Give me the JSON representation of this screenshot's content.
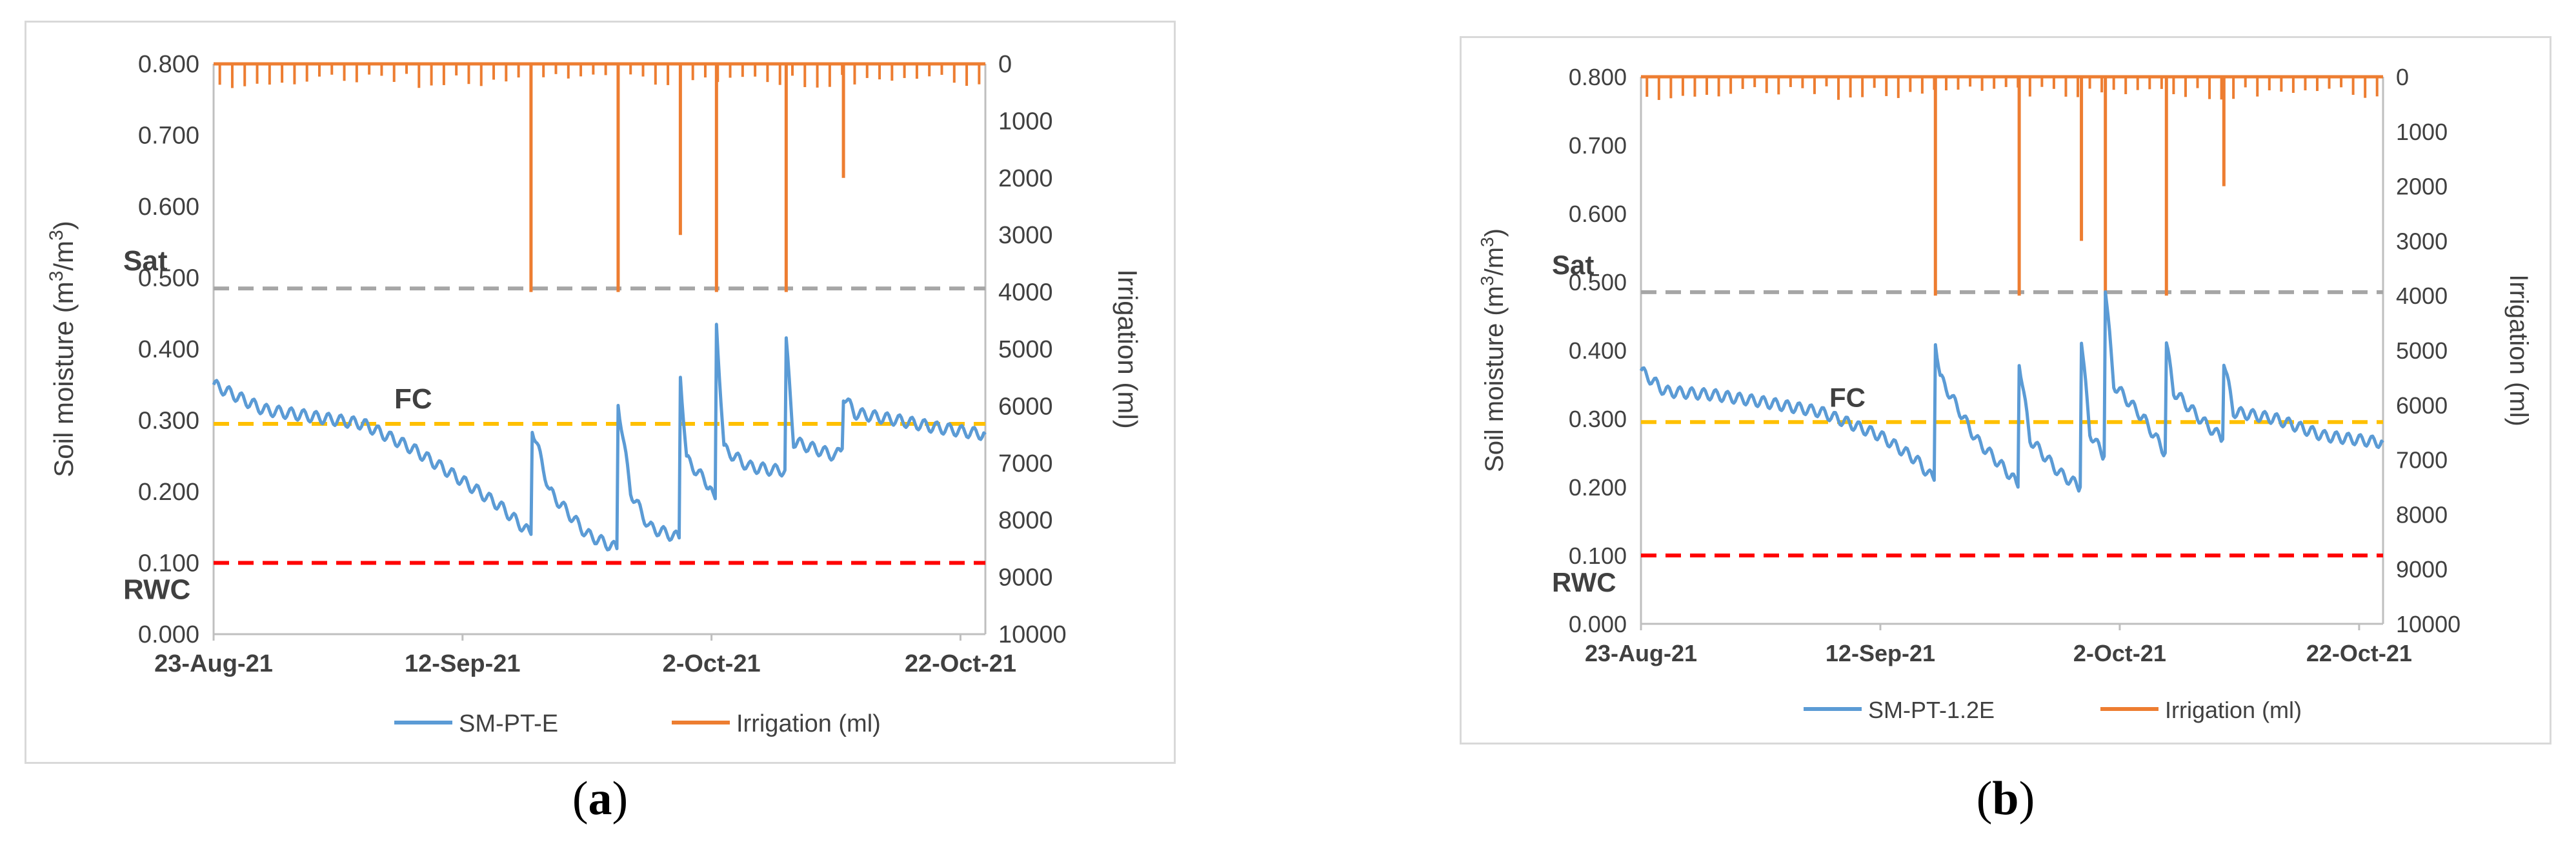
{
  "chart_data": [
    {
      "type": "line",
      "panel_label": "a",
      "title": "",
      "ylabel_main": "Soil moisture (m",
      "ylabel_sup1": "3",
      "ylabel_mid": "/m",
      "ylabel_sup2": "3",
      "ylabel_end": ")",
      "y2label": "Irrigation (ml)",
      "ylim": [
        0,
        0.8
      ],
      "y2lim": [
        0,
        10000
      ],
      "y2_inverted": true,
      "yticks": [
        "0.000",
        "0.100",
        "0.200",
        "0.300",
        "0.400",
        "0.500",
        "0.600",
        "0.700",
        "0.800"
      ],
      "y2ticks": [
        "0",
        "1000",
        "2000",
        "3000",
        "4000",
        "5000",
        "6000",
        "7000",
        "8000",
        "9000",
        "10000"
      ],
      "xlim_day": [
        0,
        62
      ],
      "xticks": [
        {
          "day": 0,
          "label": "23-Aug-21"
        },
        {
          "day": 20,
          "label": "12-Sep-21"
        },
        {
          "day": 40,
          "label": "2-Oct-21"
        },
        {
          "day": 60,
          "label": "22-Oct-21"
        }
      ],
      "reference_lines": [
        {
          "name": "Sat",
          "value": 0.485,
          "color": "#a6a6a6"
        },
        {
          "name": "FC",
          "value": 0.295,
          "color": "#ffc000"
        },
        {
          "name": "RWC",
          "value": 0.1,
          "color": "#ff0000"
        }
      ],
      "ref_labels": {
        "sat": "Sat",
        "fc": "FC",
        "rwc": "RWC"
      },
      "legend": {
        "series1": "SM-PT-E",
        "series2": "Irrigation (ml)"
      },
      "soil_moisture_keypoints": [
        [
          0,
          0.35
        ],
        [
          4,
          0.315
        ],
        [
          8,
          0.305
        ],
        [
          12,
          0.295
        ],
        [
          16,
          0.26
        ],
        [
          20,
          0.215
        ],
        [
          23,
          0.18
        ],
        [
          25.5,
          0.14
        ],
        [
          25.6,
          0.29
        ],
        [
          27,
          0.2
        ],
        [
          30,
          0.14
        ],
        [
          32.4,
          0.12
        ],
        [
          32.5,
          0.325
        ],
        [
          33.5,
          0.2
        ],
        [
          35,
          0.15
        ],
        [
          37.4,
          0.135
        ],
        [
          37.5,
          0.365
        ],
        [
          38,
          0.245
        ],
        [
          40,
          0.205
        ],
        [
          40.3,
          0.19
        ],
        [
          40.4,
          0.435
        ],
        [
          41,
          0.26
        ],
        [
          43,
          0.235
        ],
        [
          45,
          0.23
        ],
        [
          45.9,
          0.23
        ],
        [
          46,
          0.41
        ],
        [
          46.6,
          0.27
        ],
        [
          50,
          0.25
        ],
        [
          50.5,
          0.26
        ],
        [
          50.6,
          0.335
        ],
        [
          51.5,
          0.31
        ],
        [
          55,
          0.3
        ],
        [
          58,
          0.29
        ],
        [
          62,
          0.28
        ]
      ],
      "irrigation_daily_ml": 250,
      "irrigation_large_events": [
        {
          "day": 25.5,
          "ml": 4000
        },
        {
          "day": 32.5,
          "ml": 4000
        },
        {
          "day": 37.5,
          "ml": 3000
        },
        {
          "day": 40.4,
          "ml": 4000
        },
        {
          "day": 46,
          "ml": 4000
        },
        {
          "day": 50.6,
          "ml": 2000
        }
      ]
    },
    {
      "type": "line",
      "panel_label": "b",
      "title": "",
      "ylabel_main": "Soil moisture (m",
      "ylabel_sup1": "3",
      "ylabel_mid": "/m",
      "ylabel_sup2": "3",
      "ylabel_end": ")",
      "y2label": "Irrigation (ml)",
      "ylim": [
        0,
        0.8
      ],
      "y2lim": [
        0,
        10000
      ],
      "y2_inverted": true,
      "yticks": [
        "0.000",
        "0.100",
        "0.200",
        "0.300",
        "0.400",
        "0.500",
        "0.600",
        "0.700",
        "0.800"
      ],
      "y2ticks": [
        "0",
        "1000",
        "2000",
        "3000",
        "4000",
        "5000",
        "6000",
        "7000",
        "8000",
        "9000",
        "10000"
      ],
      "xlim_day": [
        0,
        62
      ],
      "xticks": [
        {
          "day": 0,
          "label": "23-Aug-21"
        },
        {
          "day": 20,
          "label": "12-Sep-21"
        },
        {
          "day": 40,
          "label": "2-Oct-21"
        },
        {
          "day": 60,
          "label": "22-Oct-21"
        }
      ],
      "reference_lines": [
        {
          "name": "Sat",
          "value": 0.485,
          "color": "#a6a6a6"
        },
        {
          "name": "FC",
          "value": 0.295,
          "color": "#ffc000"
        },
        {
          "name": "RWC",
          "value": 0.1,
          "color": "#ff0000"
        }
      ],
      "ref_labels": {
        "sat": "Sat",
        "fc": "FC",
        "rwc": "RWC"
      },
      "legend": {
        "series1": "SM-PT-1.2E",
        "series2": "Irrigation (ml)"
      },
      "soil_moisture_keypoints": [
        [
          0,
          0.37
        ],
        [
          2,
          0.34
        ],
        [
          6,
          0.335
        ],
        [
          10,
          0.325
        ],
        [
          15,
          0.31
        ],
        [
          20,
          0.275
        ],
        [
          23,
          0.24
        ],
        [
          24.5,
          0.21
        ],
        [
          24.6,
          0.415
        ],
        [
          25,
          0.36
        ],
        [
          28,
          0.27
        ],
        [
          31,
          0.215
        ],
        [
          31.5,
          0.2
        ],
        [
          31.6,
          0.385
        ],
        [
          32.5,
          0.27
        ],
        [
          35,
          0.22
        ],
        [
          36.7,
          0.2
        ],
        [
          36.8,
          0.415
        ],
        [
          37.5,
          0.28
        ],
        [
          38,
          0.265
        ],
        [
          38.7,
          0.245
        ],
        [
          38.8,
          0.49
        ],
        [
          39.5,
          0.35
        ],
        [
          42,
          0.3
        ],
        [
          43.8,
          0.25
        ],
        [
          43.9,
          0.41
        ],
        [
          44.5,
          0.34
        ],
        [
          47,
          0.295
        ],
        [
          48.6,
          0.27
        ],
        [
          48.7,
          0.385
        ],
        [
          49.5,
          0.31
        ],
        [
          53,
          0.3
        ],
        [
          57,
          0.275
        ],
        [
          62,
          0.265
        ]
      ],
      "irrigation_daily_ml": 250,
      "irrigation_large_events": [
        {
          "day": 24.6,
          "ml": 4000
        },
        {
          "day": 31.6,
          "ml": 4000
        },
        {
          "day": 36.8,
          "ml": 3000
        },
        {
          "day": 38.8,
          "ml": 4000
        },
        {
          "day": 43.9,
          "ml": 4000
        },
        {
          "day": 48.7,
          "ml": 2000
        }
      ]
    }
  ]
}
